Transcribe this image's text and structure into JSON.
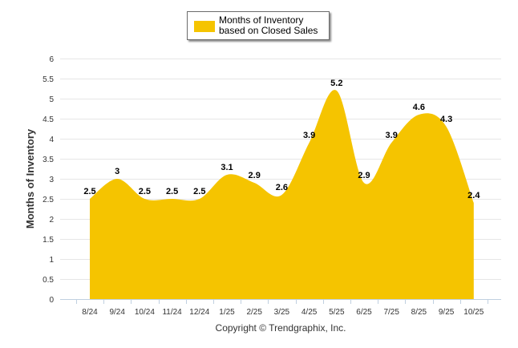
{
  "chart_data": {
    "type": "area",
    "categories": [
      "8/24",
      "9/24",
      "10/24",
      "11/24",
      "12/24",
      "1/25",
      "2/25",
      "3/25",
      "4/25",
      "5/25",
      "6/25",
      "7/25",
      "8/25",
      "9/25",
      "10/25"
    ],
    "series": [
      {
        "name": "Months of Inventory based on Closed Sales",
        "values": [
          2.5,
          3,
          2.5,
          2.5,
          2.5,
          3.1,
          2.9,
          2.6,
          3.9,
          5.2,
          2.9,
          3.9,
          4.6,
          4.3,
          2.4
        ],
        "color": "#f5c400"
      }
    ],
    "ylabel": "Months of Inventory",
    "xlabel": "",
    "ylim": [
      0,
      6
    ],
    "yticks": [
      "0",
      "0.5",
      "1",
      "1.5",
      "2",
      "2.5",
      "3",
      "3.5",
      "4",
      "4.5",
      "5",
      "5.5",
      "6"
    ],
    "legend_position": "top-center",
    "footer": "Copyright © Trendgraphix, Inc."
  },
  "legend": {
    "label": "Months of Inventory based on Closed Sales"
  }
}
